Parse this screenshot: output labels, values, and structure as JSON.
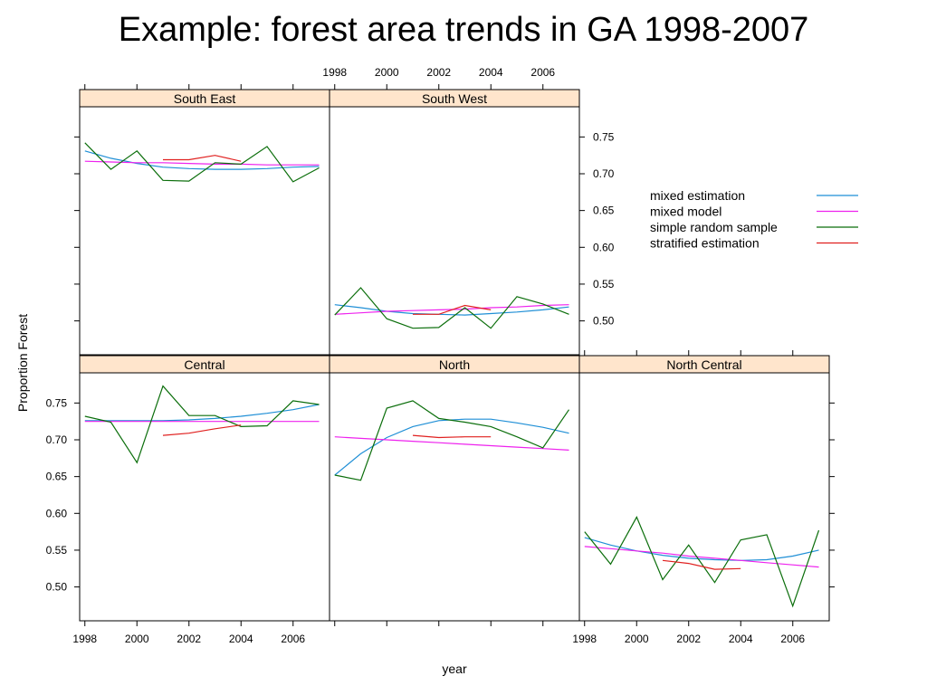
{
  "slide": {
    "title": "Example:  forest area trends in GA 1998-2007"
  },
  "chart_data": {
    "type": "line",
    "xlabel": "year",
    "ylabel": "Proportion Forest",
    "xlim": [
      1997.8,
      2007.4
    ],
    "ylim": [
      0.454,
      0.791
    ],
    "x_ticks": [
      1998,
      2000,
      2002,
      2004,
      2006
    ],
    "y_ticks": [
      0.5,
      0.55,
      0.6,
      0.65,
      0.7,
      0.75
    ],
    "x_tick_labels": [
      "1998",
      "2000",
      "2002",
      "2004",
      "2006"
    ],
    "y_tick_labels": [
      "0.50",
      "0.55",
      "0.60",
      "0.65",
      "0.70",
      "0.75"
    ],
    "grid": false,
    "legend_position": "right",
    "legend": [
      {
        "name": "mixed estimation",
        "color": "#1f8fd6"
      },
      {
        "name": "mixed model",
        "color": "#ee22ee"
      },
      {
        "name": "simple random sample",
        "color": "#0b6e0b"
      },
      {
        "name": "stratified estimation",
        "color": "#e0201f"
      }
    ],
    "panels": [
      {
        "name": "South East",
        "series": [
          {
            "name": "mixed estimation",
            "x": [
              1998,
              1999,
              2000,
              2001,
              2002,
              2003,
              2004,
              2005,
              2006,
              2007
            ],
            "y": [
              0.731,
              0.721,
              0.714,
              0.709,
              0.707,
              0.706,
              0.706,
              0.707,
              0.709,
              0.71
            ]
          },
          {
            "name": "mixed model",
            "x": [
              1998,
              1999,
              2000,
              2001,
              2002,
              2003,
              2004,
              2005,
              2006,
              2007
            ],
            "y": [
              0.717,
              0.716,
              0.715,
              0.715,
              0.714,
              0.713,
              0.713,
              0.712,
              0.712,
              0.712
            ]
          },
          {
            "name": "simple random sample",
            "x": [
              1998,
              1999,
              2000,
              2001,
              2002,
              2003,
              2004,
              2005,
              2006,
              2007
            ],
            "y": [
              0.742,
              0.706,
              0.731,
              0.691,
              0.69,
              0.715,
              0.713,
              0.737,
              0.689,
              0.708
            ]
          },
          {
            "name": "stratified estimation",
            "x": [
              2001,
              2002,
              2003,
              2004
            ],
            "y": [
              0.719,
              0.719,
              0.725,
              0.717
            ]
          }
        ]
      },
      {
        "name": "South West",
        "series": [
          {
            "name": "mixed estimation",
            "x": [
              1998,
              1999,
              2000,
              2001,
              2002,
              2003,
              2004,
              2005,
              2006,
              2007
            ],
            "y": [
              0.522,
              0.518,
              0.513,
              0.51,
              0.509,
              0.508,
              0.51,
              0.512,
              0.515,
              0.519
            ]
          },
          {
            "name": "mixed model",
            "x": [
              1998,
              1999,
              2000,
              2001,
              2002,
              2003,
              2004,
              2005,
              2006,
              2007
            ],
            "y": [
              0.509,
              0.511,
              0.513,
              0.514,
              0.515,
              0.516,
              0.518,
              0.519,
              0.521,
              0.522
            ]
          },
          {
            "name": "simple random sample",
            "x": [
              1998,
              1999,
              2000,
              2001,
              2002,
              2003,
              2004,
              2005,
              2006,
              2007
            ],
            "y": [
              0.508,
              0.545,
              0.503,
              0.49,
              0.491,
              0.518,
              0.49,
              0.533,
              0.523,
              0.509
            ]
          },
          {
            "name": "stratified estimation",
            "x": [
              2001,
              2002,
              2003,
              2004
            ],
            "y": [
              0.509,
              0.509,
              0.521,
              0.515
            ]
          }
        ]
      },
      {
        "name": "Central",
        "series": [
          {
            "name": "mixed estimation",
            "x": [
              1998,
              1999,
              2000,
              2001,
              2002,
              2003,
              2004,
              2005,
              2006,
              2007
            ],
            "y": [
              0.726,
              0.726,
              0.726,
              0.726,
              0.727,
              0.729,
              0.732,
              0.736,
              0.741,
              0.748
            ]
          },
          {
            "name": "mixed model",
            "x": [
              1998,
              1999,
              2000,
              2001,
              2002,
              2003,
              2004,
              2005,
              2006,
              2007
            ],
            "y": [
              0.725,
              0.725,
              0.725,
              0.725,
              0.725,
              0.725,
              0.725,
              0.725,
              0.725,
              0.725
            ]
          },
          {
            "name": "simple random sample",
            "x": [
              1998,
              1999,
              2000,
              2001,
              2002,
              2003,
              2004,
              2005,
              2006,
              2007
            ],
            "y": [
              0.732,
              0.724,
              0.669,
              0.773,
              0.733,
              0.733,
              0.718,
              0.719,
              0.753,
              0.748
            ]
          },
          {
            "name": "stratified estimation",
            "x": [
              2001,
              2002,
              2003,
              2004
            ],
            "y": [
              0.706,
              0.709,
              0.715,
              0.72
            ]
          }
        ]
      },
      {
        "name": "North",
        "series": [
          {
            "name": "mixed estimation",
            "x": [
              1998,
              1999,
              2000,
              2001,
              2002,
              2003,
              2004,
              2005,
              2006,
              2007
            ],
            "y": [
              0.652,
              0.681,
              0.703,
              0.718,
              0.726,
              0.728,
              0.728,
              0.723,
              0.717,
              0.709
            ]
          },
          {
            "name": "mixed model",
            "x": [
              1998,
              1999,
              2000,
              2001,
              2002,
              2003,
              2004,
              2005,
              2006,
              2007
            ],
            "y": [
              0.704,
              0.702,
              0.7,
              0.698,
              0.696,
              0.694,
              0.692,
              0.69,
              0.688,
              0.686
            ]
          },
          {
            "name": "simple random sample",
            "x": [
              1998,
              1999,
              2000,
              2001,
              2002,
              2003,
              2004,
              2005,
              2006,
              2007
            ],
            "y": [
              0.652,
              0.645,
              0.743,
              0.753,
              0.729,
              0.724,
              0.718,
              0.704,
              0.689,
              0.741
            ]
          },
          {
            "name": "stratified estimation",
            "x": [
              2001,
              2002,
              2003,
              2004
            ],
            "y": [
              0.706,
              0.703,
              0.704,
              0.704
            ]
          }
        ]
      },
      {
        "name": "North Central",
        "series": [
          {
            "name": "mixed estimation",
            "x": [
              1998,
              1999,
              2000,
              2001,
              2002,
              2003,
              2004,
              2005,
              2006,
              2007
            ],
            "y": [
              0.567,
              0.557,
              0.549,
              0.543,
              0.539,
              0.537,
              0.536,
              0.537,
              0.542,
              0.55
            ]
          },
          {
            "name": "mixed model",
            "x": [
              1998,
              1999,
              2000,
              2001,
              2002,
              2003,
              2004,
              2005,
              2006,
              2007
            ],
            "y": [
              0.555,
              0.552,
              0.549,
              0.546,
              0.542,
              0.539,
              0.536,
              0.533,
              0.53,
              0.527
            ]
          },
          {
            "name": "simple random sample",
            "x": [
              1998,
              1999,
              2000,
              2001,
              2002,
              2003,
              2004,
              2005,
              2006,
              2007
            ],
            "y": [
              0.575,
              0.531,
              0.595,
              0.51,
              0.557,
              0.506,
              0.564,
              0.571,
              0.474,
              0.577
            ]
          },
          {
            "name": "stratified estimation",
            "x": [
              2001,
              2002,
              2003,
              2004
            ],
            "y": [
              0.536,
              0.532,
              0.524,
              0.525
            ]
          }
        ]
      }
    ]
  }
}
